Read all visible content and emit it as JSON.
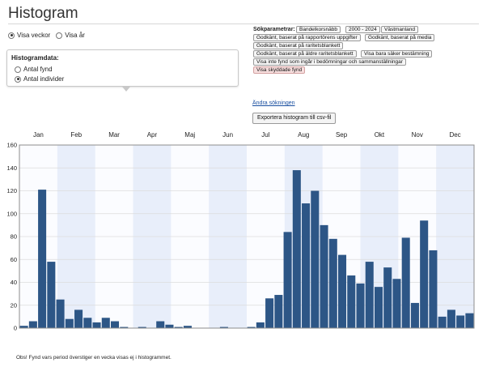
{
  "page": {
    "title": "Histogram"
  },
  "period": {
    "options": [
      {
        "label": "Visa veckor",
        "selected": true
      },
      {
        "label": "Visa år",
        "selected": false
      }
    ]
  },
  "histogram_panel": {
    "title": "Histogramdata:",
    "options": [
      {
        "label": "Antal fynd",
        "selected": false
      },
      {
        "label": "Antal individer",
        "selected": true
      }
    ]
  },
  "search_params": {
    "label": "Sökparametrar:",
    "tags": [
      {
        "text": "Bandelkorsnäbb",
        "highlight": false
      },
      {
        "text": "2000 - 2024",
        "highlight": false
      },
      {
        "text": "Västmanland",
        "highlight": false
      },
      {
        "text": "Godkänt, baserat på rapportörens uppgifter",
        "highlight": false
      },
      {
        "text": "Godkänt, baserat på media",
        "highlight": false
      },
      {
        "text": "Godkänt, baserat på raritetsblankett",
        "highlight": false
      },
      {
        "text": "Godkänt, baserat på äldre raritetsblankett",
        "highlight": false
      },
      {
        "text": "Visa bara säker bestämning",
        "highlight": false
      },
      {
        "text": "Visa inte fynd som ingår i bedömningar och sammanställningar",
        "highlight": false
      },
      {
        "text": "Visa skyddade fynd",
        "highlight": true
      }
    ],
    "change_link": "Ändra sökningen"
  },
  "export_button": "Exportera histogram till csv-fil",
  "chart_data": {
    "type": "bar",
    "title": "",
    "xlabel": "",
    "ylabel": "",
    "ylim": [
      0,
      160
    ],
    "yticks": [
      0,
      20,
      40,
      60,
      80,
      100,
      120,
      140,
      160
    ],
    "grid": true,
    "months": [
      "Jan",
      "Feb",
      "Mar",
      "Apr",
      "Maj",
      "Jun",
      "Jul",
      "Aug",
      "Sep",
      "Okt",
      "Nov",
      "Dec"
    ],
    "bar_color": "#2d5686",
    "values": [
      2,
      6,
      121,
      58,
      25,
      8,
      16,
      9,
      5,
      9,
      6,
      1,
      0,
      1,
      0,
      6,
      3,
      1,
      2,
      0,
      0,
      0,
      1,
      0,
      0,
      1,
      5,
      26,
      29,
      84,
      138,
      109,
      120,
      90,
      78,
      64,
      46,
      39,
      58,
      36,
      53,
      43,
      79,
      22,
      94,
      68,
      10,
      16,
      11,
      13
    ]
  },
  "footnote": "Obs! Fynd vars period överstiger en vecka visas ej i histogrammet."
}
